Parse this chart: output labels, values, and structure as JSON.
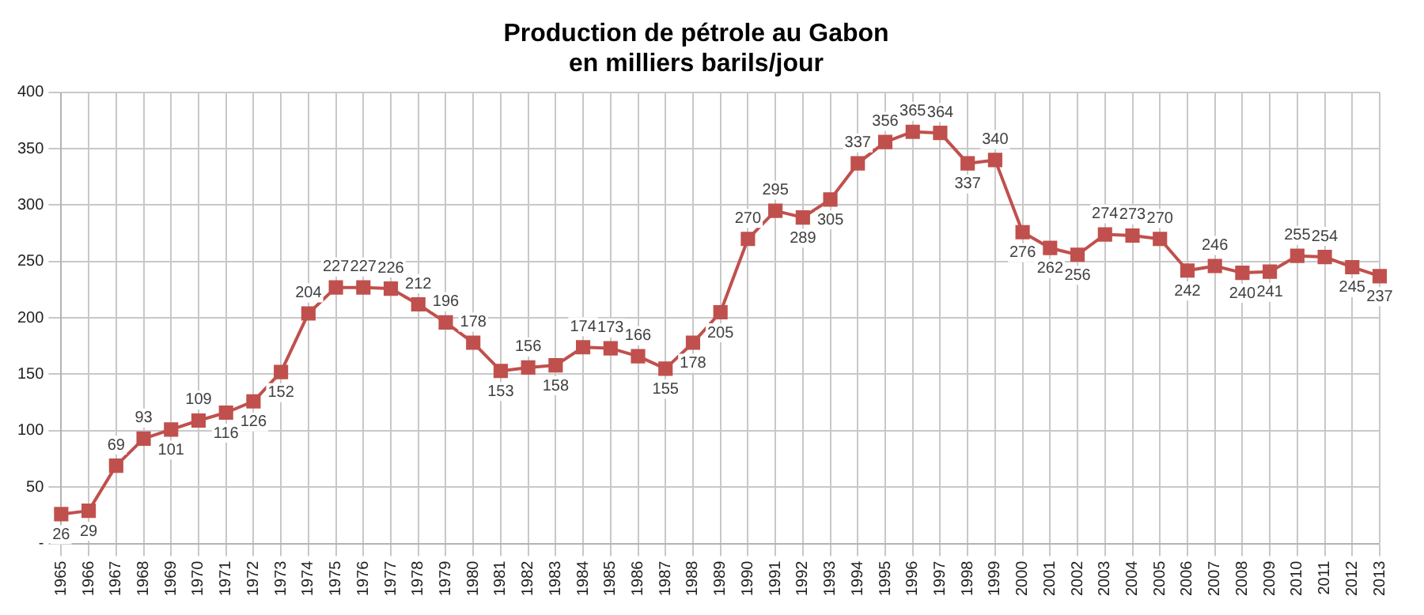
{
  "chart_data": {
    "type": "line",
    "title": [
      "Production de pétrole au Gabon",
      "en milliers barils/jour"
    ],
    "categories": [
      "1965",
      "1966",
      "1967",
      "1968",
      "1969",
      "1970",
      "1971",
      "1972",
      "1973",
      "1974",
      "1975",
      "1976",
      "1977",
      "1978",
      "1979",
      "1980",
      "1981",
      "1982",
      "1983",
      "1984",
      "1985",
      "1986",
      "1987",
      "1988",
      "1989",
      "1990",
      "1991",
      "1992",
      "1993",
      "1994",
      "1995",
      "1996",
      "1997",
      "1998",
      "1999",
      "2000",
      "2001",
      "2002",
      "2003",
      "2004",
      "2005",
      "2006",
      "2007",
      "2008",
      "2009",
      "2010",
      "2011",
      "2012",
      "2013"
    ],
    "series": [
      {
        "color": "#c0504d",
        "values": [
          26,
          29,
          69,
          93,
          101,
          109,
          116,
          126,
          152,
          204,
          227,
          227,
          226,
          212,
          196,
          178,
          153,
          156,
          158,
          174,
          173,
          166,
          155,
          178,
          205,
          270,
          295,
          289,
          305,
          337,
          356,
          365,
          364,
          337,
          340,
          276,
          262,
          256,
          274,
          273,
          270,
          242,
          246,
          240,
          241,
          255,
          254,
          245,
          237
        ]
      }
    ],
    "ylim": [
      0,
      400
    ],
    "yticks": [
      {
        "value": 0,
        "label": "-"
      },
      50,
      100,
      150,
      200,
      250,
      300,
      350,
      400
    ],
    "grid": true,
    "legend": false,
    "marker": "square",
    "line_style": "solid",
    "data_labels": true
  }
}
